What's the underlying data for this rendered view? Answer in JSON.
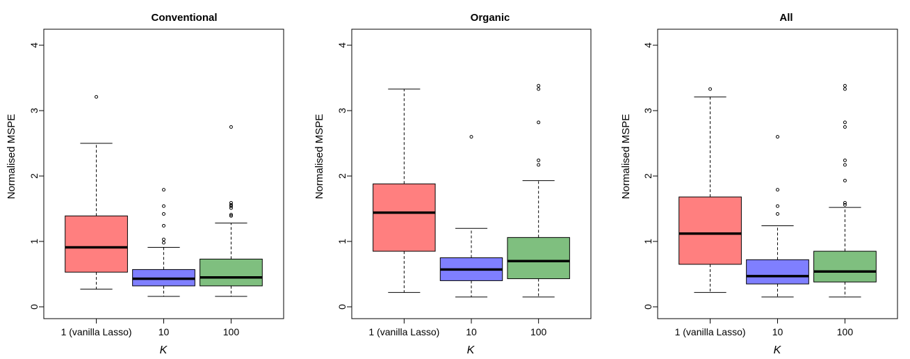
{
  "chart_data": [
    {
      "type": "boxplot",
      "title": "Conventional",
      "xlabel": "K",
      "ylabel": "Normalised MSPE",
      "ylim": [
        0,
        4
      ],
      "yticks": [
        "0",
        "1",
        "2",
        "3",
        "4"
      ],
      "categories": [
        "1 (vanilla Lasso)",
        "10",
        "100"
      ],
      "colors": [
        "#FF7F7F",
        "#7F7FFF",
        "#7FBF7F"
      ],
      "grid": false,
      "boxes": [
        {
          "whisker_low": 0.27,
          "q1": 0.53,
          "median": 0.91,
          "q3": 1.39,
          "whisker_high": 2.5,
          "outliers": [
            3.21
          ]
        },
        {
          "whisker_low": 0.16,
          "q1": 0.32,
          "median": 0.43,
          "q3": 0.57,
          "whisker_high": 0.91,
          "outliers": [
            0.98,
            1.03,
            1.24,
            1.42,
            1.54,
            1.79
          ]
        },
        {
          "whisker_low": 0.16,
          "q1": 0.32,
          "median": 0.45,
          "q3": 0.73,
          "whisker_high": 1.28,
          "outliers": [
            1.39,
            1.41,
            1.51,
            1.54,
            1.56,
            1.59,
            2.75
          ]
        }
      ]
    },
    {
      "type": "boxplot",
      "title": "Organic",
      "xlabel": "K",
      "ylabel": "Normalised MSPE",
      "ylim": [
        0,
        4
      ],
      "yticks": [
        "0",
        "1",
        "2",
        "3",
        "4"
      ],
      "categories": [
        "1 (vanilla Lasso)",
        "10",
        "100"
      ],
      "colors": [
        "#FF7F7F",
        "#7F7FFF",
        "#7FBF7F"
      ],
      "grid": false,
      "boxes": [
        {
          "whisker_low": 0.22,
          "q1": 0.85,
          "median": 1.44,
          "q3": 1.88,
          "whisker_high": 3.33,
          "outliers": []
        },
        {
          "whisker_low": 0.15,
          "q1": 0.4,
          "median": 0.57,
          "q3": 0.75,
          "whisker_high": 1.2,
          "outliers": [
            2.6
          ]
        },
        {
          "whisker_low": 0.15,
          "q1": 0.43,
          "median": 0.7,
          "q3": 1.06,
          "whisker_high": 1.93,
          "outliers": [
            2.17,
            2.24,
            2.82,
            3.33,
            3.38
          ]
        }
      ]
    },
    {
      "type": "boxplot",
      "title": "All",
      "xlabel": "K",
      "ylabel": "Normalised MSPE",
      "ylim": [
        0,
        4
      ],
      "yticks": [
        "0",
        "1",
        "2",
        "3",
        "4"
      ],
      "categories": [
        "1 (vanilla Lasso)",
        "10",
        "100"
      ],
      "colors": [
        "#FF7F7F",
        "#7F7FFF",
        "#7FBF7F"
      ],
      "grid": false,
      "boxes": [
        {
          "whisker_low": 0.22,
          "q1": 0.65,
          "median": 1.12,
          "q3": 1.68,
          "whisker_high": 3.21,
          "outliers": [
            3.33
          ]
        },
        {
          "whisker_low": 0.15,
          "q1": 0.35,
          "median": 0.47,
          "q3": 0.72,
          "whisker_high": 1.24,
          "outliers": [
            1.42,
            1.54,
            1.79,
            2.6
          ]
        },
        {
          "whisker_low": 0.15,
          "q1": 0.38,
          "median": 0.54,
          "q3": 0.85,
          "whisker_high": 1.52,
          "outliers": [
            1.56,
            1.59,
            1.93,
            2.17,
            2.24,
            2.75,
            2.82,
            3.33,
            3.38
          ]
        }
      ]
    }
  ]
}
